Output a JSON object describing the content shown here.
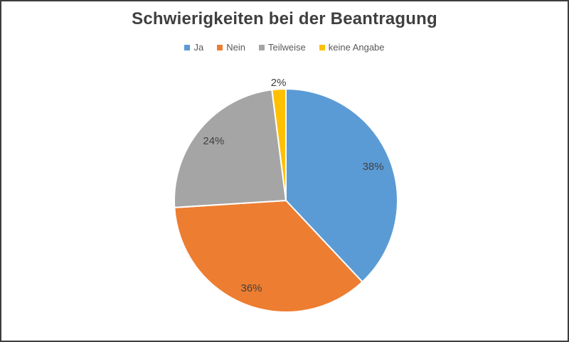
{
  "chart": {
    "title": "Schwierigkeiten bei der Beantragung",
    "colors": {
      "background": "#ffffff",
      "frame_border": "#3d3d3d",
      "title_text": "#3f3f3f",
      "legend_text": "#595959",
      "label_text": "#404040",
      "slice_stroke": "#ffffff"
    }
  },
  "chart_data": {
    "type": "pie",
    "title": "Schwierigkeiten bei der Beantragung",
    "legend_position": "top",
    "start_angle_deg": 0,
    "direction": "clockwise",
    "unit": "%",
    "slices": [
      {
        "label": "Ja",
        "value": 38,
        "display": "38%",
        "color": "#5B9BD5"
      },
      {
        "label": "Nein",
        "value": 36,
        "display": "36%",
        "color": "#ED7D31"
      },
      {
        "label": "Teilweise",
        "value": 24,
        "display": "24%",
        "color": "#A5A5A5"
      },
      {
        "label": "keine Angabe",
        "value": 2,
        "display": "2%",
        "color": "#FFC000"
      }
    ]
  }
}
